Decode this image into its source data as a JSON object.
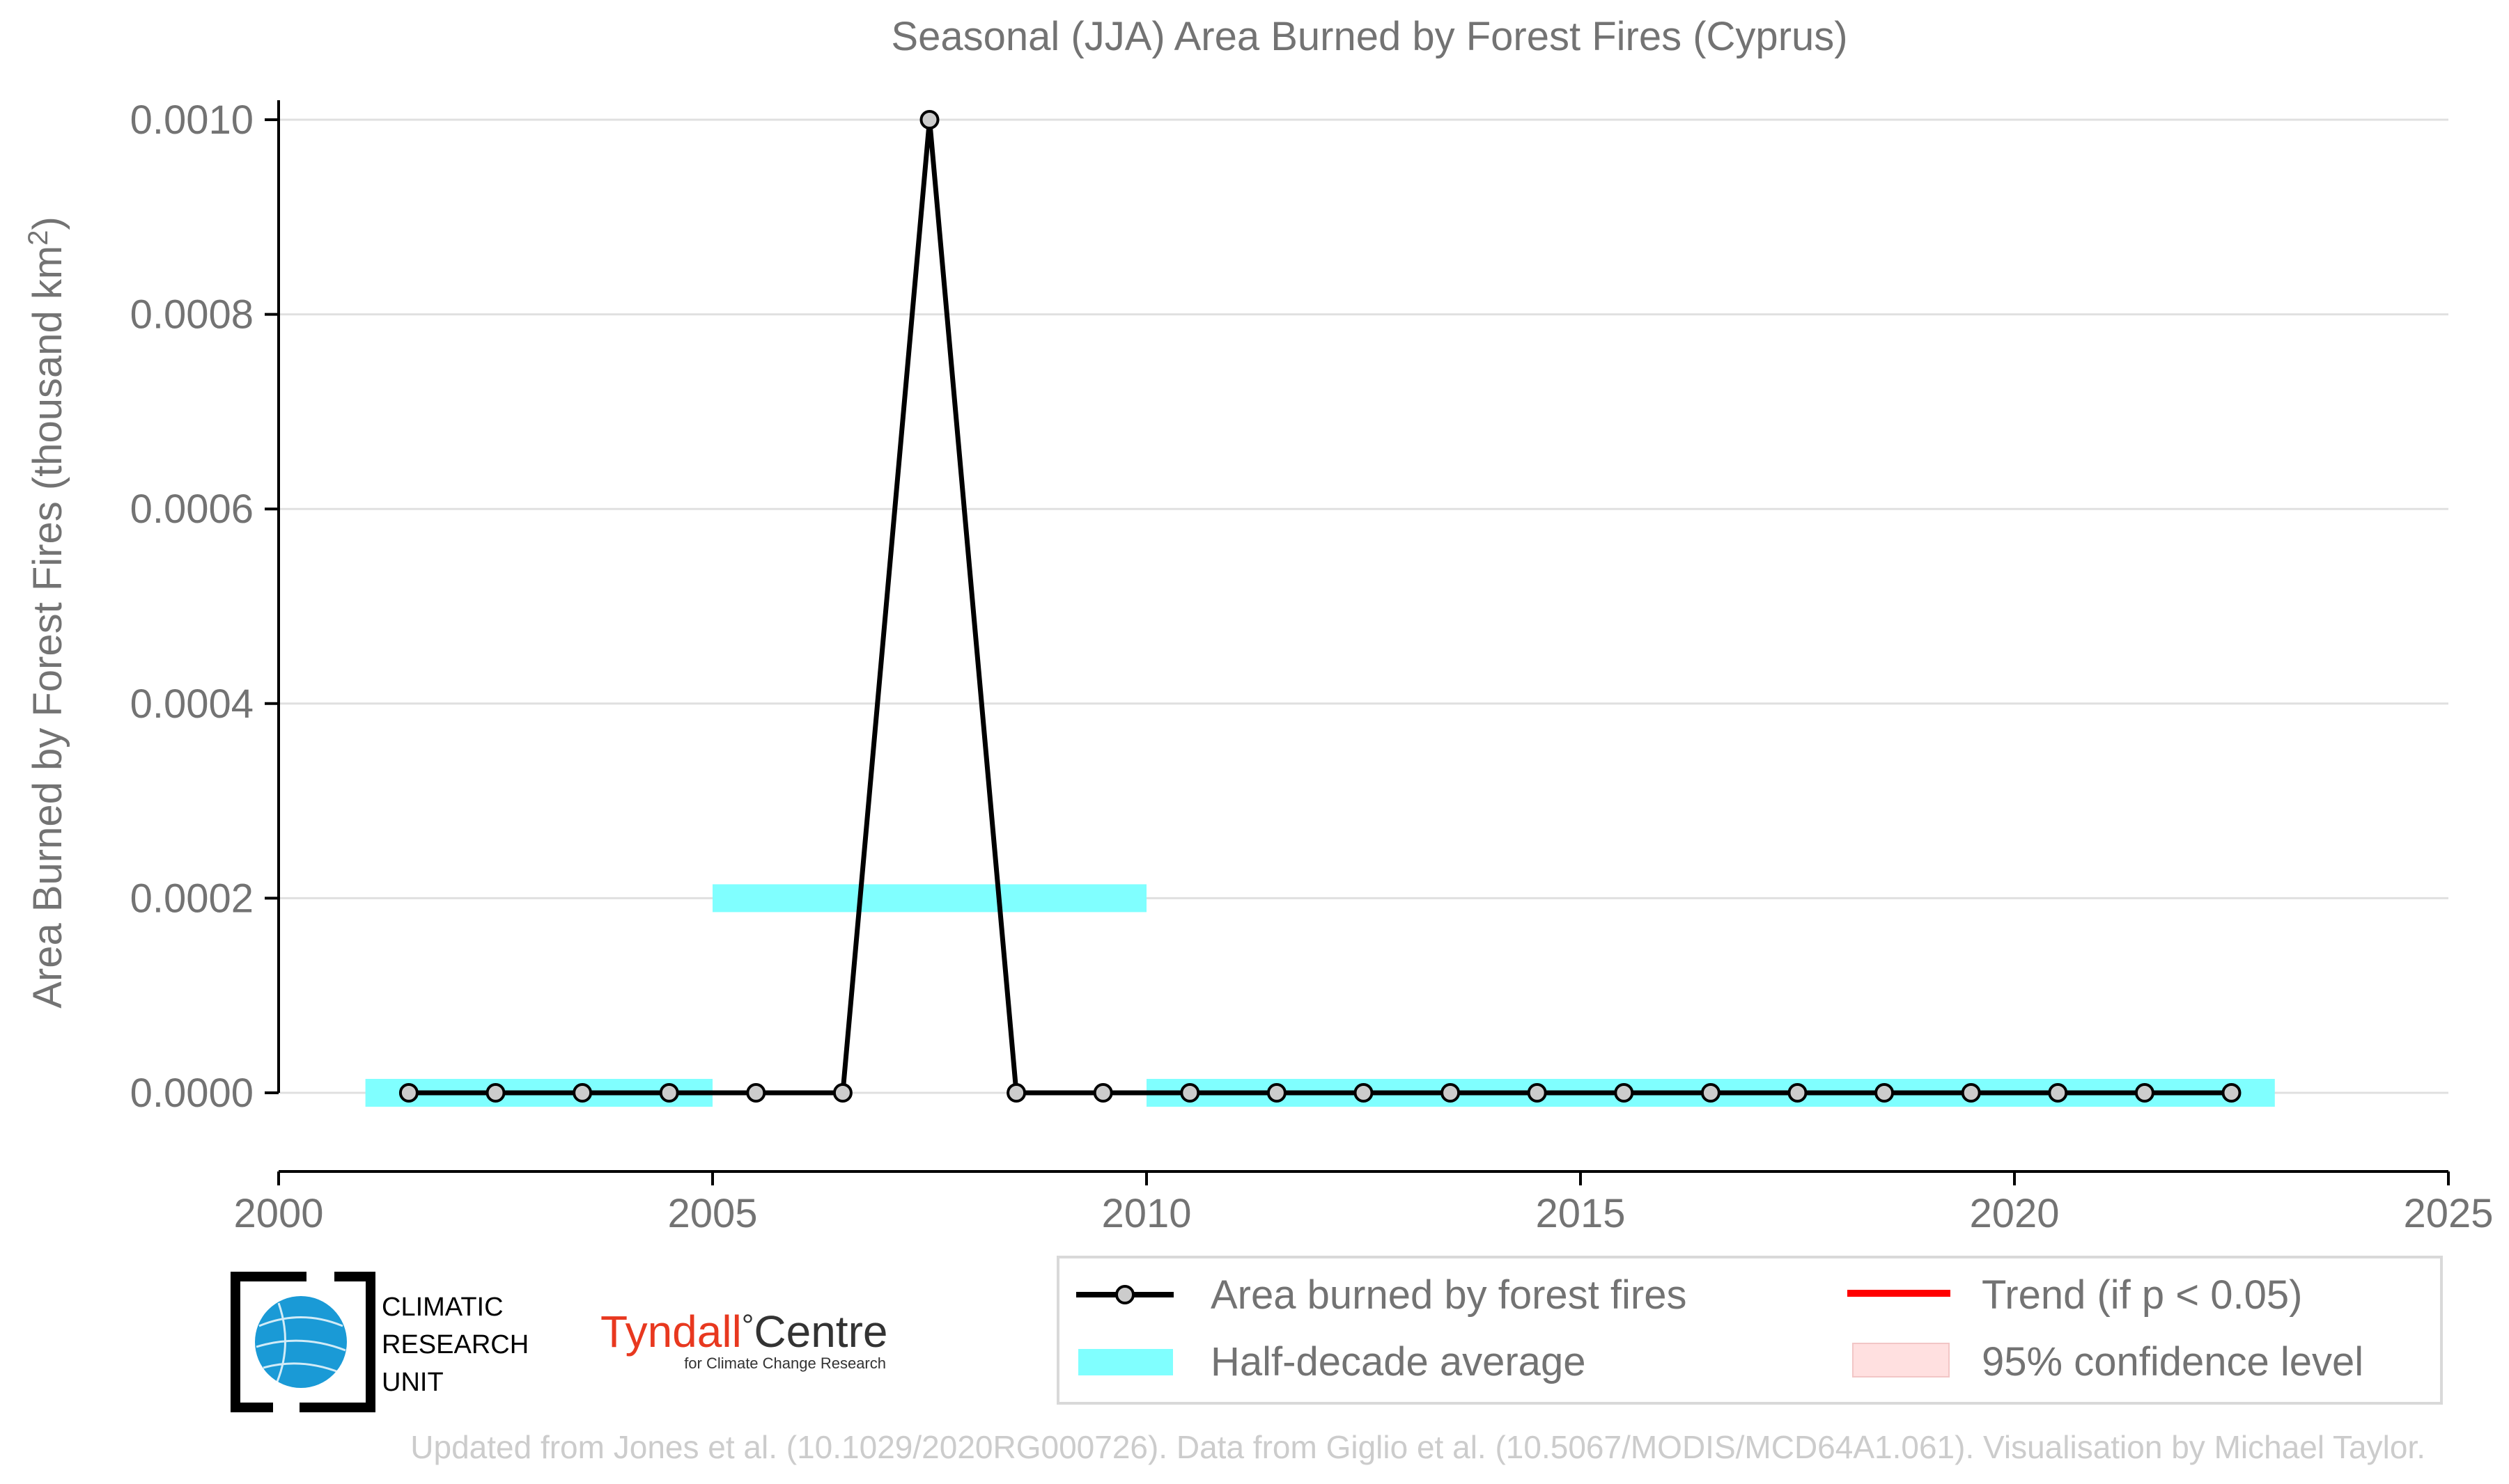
{
  "chart_data": {
    "type": "line",
    "title": "Seasonal (JJA) Area Burned by Forest Fires (Cyprus)",
    "ylabel_main": "Area Burned by Forest Fires (thousand km",
    "ylabel_sup": "2",
    "ylabel_close": ")",
    "xlim": [
      2000,
      2025
    ],
    "ylim": [
      -8e-05,
      0.00102
    ],
    "x_ticks": [
      2000,
      2005,
      2010,
      2015,
      2020,
      2025
    ],
    "x_tick_labels": [
      "2000",
      "2005",
      "2010",
      "2015",
      "2020",
      "2025"
    ],
    "y_ticks": [
      0,
      0.0002,
      0.0004,
      0.0006,
      0.0008,
      0.001
    ],
    "y_tick_labels": [
      "0.0000",
      "0.0002",
      "0.0004",
      "0.0006",
      "0.0008",
      "0.0010"
    ],
    "grid": "horizontal",
    "series": [
      {
        "name": "Area burned by forest fires",
        "color": "#000000",
        "marker_fill": "#cccccc",
        "x": [
          2001.5,
          2002.5,
          2003.5,
          2004.5,
          2005.5,
          2006.5,
          2007.5,
          2008.5,
          2009.5,
          2010.5,
          2011.5,
          2012.5,
          2013.5,
          2014.5,
          2015.5,
          2016.5,
          2017.5,
          2018.5,
          2019.5,
          2020.5,
          2021.5,
          2022.5
        ],
        "y": [
          0,
          0,
          0,
          0,
          0,
          0,
          0.001,
          0,
          0,
          0,
          0,
          0,
          0,
          0,
          0,
          0,
          0,
          0,
          0,
          0,
          0,
          0
        ]
      }
    ],
    "half_decade_average": {
      "name": "Half-decade average",
      "color": "#80ffff",
      "segments": [
        {
          "x0": 2001,
          "x1": 2005,
          "value": 0
        },
        {
          "x0": 2005,
          "x1": 2010,
          "value": 0.0002
        },
        {
          "x0": 2010,
          "x1": 2023,
          "value": 0
        }
      ]
    },
    "legend": {
      "placement": "bottom-right",
      "items": [
        {
          "label": "Area burned by forest fires",
          "kind": "line-marker",
          "color": "#000000"
        },
        {
          "label": "Trend (if p < 0.05)",
          "kind": "line",
          "color": "#ff0000"
        },
        {
          "label": "Half-decade average",
          "kind": "band",
          "color": "#80ffff"
        },
        {
          "label": "95% confidence level",
          "kind": "patch",
          "color": "#ffd6d6"
        }
      ]
    }
  },
  "logos": {
    "cru": [
      "CLIMATIC",
      "RESEARCH",
      "UNIT"
    ],
    "tyndall_name": "Tyndall",
    "tyndall_degree": "°",
    "tyndall_centre": "Centre",
    "tyndall_sub": "for Climate Change Research"
  },
  "footer": "Updated from Jones et al. (10.1029/2020RG000726). Data from Giglio et al. (10.5067/MODIS/MCD64A1.061). Visualisation by Michael Taylor.",
  "colors": {
    "text_gray": "#737373",
    "grid": "#e0e0e0",
    "footer": "#cccccc",
    "tyndall_red": "#e8381f"
  }
}
